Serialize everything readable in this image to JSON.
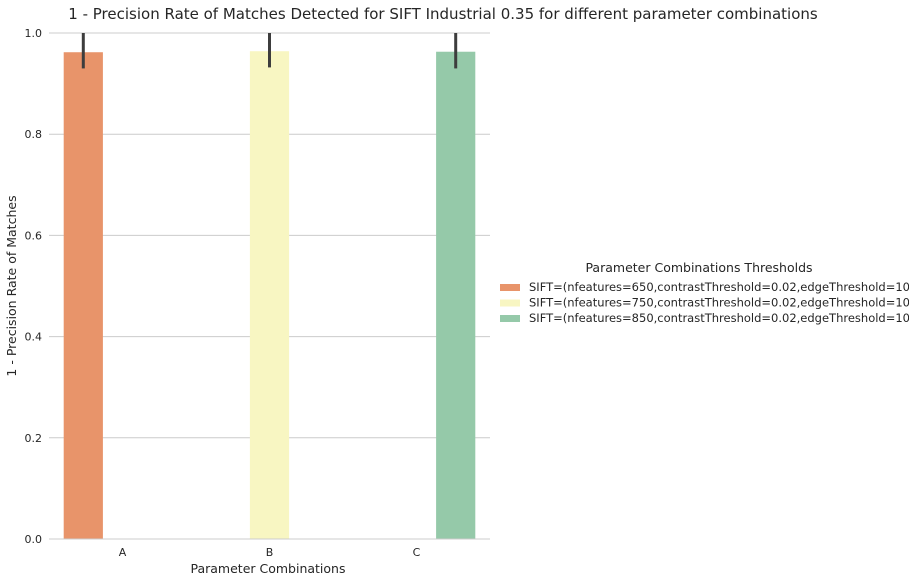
{
  "chart_data": {
    "type": "bar",
    "title": "1 - Precision Rate of Matches Detected for SIFT Industrial 0.35 for different parameter combinations",
    "xlabel": "Parameter Combinations",
    "ylabel": "1 - Precision Rate of Matches",
    "categories": [
      "A",
      "B",
      "C"
    ],
    "ylim": [
      0,
      1.0
    ],
    "yticks": [
      "0.0",
      "0.2",
      "0.4",
      "0.6",
      "0.8",
      "1.0"
    ],
    "grid": "horizontal",
    "legend_title": "Parameter Combinations Thresholds",
    "legend_position": "right",
    "series": [
      {
        "name": "SIFT=(nfeatures=650,contrastThreshold=0.02,edgeThreshold=10)",
        "color": "#e8946a",
        "values": [
          0.962,
          null,
          null
        ],
        "err_low": [
          0.93,
          null,
          null
        ],
        "err_high": [
          1.0,
          null,
          null
        ]
      },
      {
        "name": "SIFT=(nfeatures=750,contrastThreshold=0.02,edgeThreshold=10)",
        "color": "#f8f6c2",
        "values": [
          null,
          0.964,
          null
        ],
        "err_low": [
          null,
          0.932,
          null
        ],
        "err_high": [
          null,
          1.0,
          null
        ]
      },
      {
        "name": "SIFT=(nfeatures=850,contrastThreshold=0.02,edgeThreshold=10)",
        "color": "#95c9a9",
        "values": [
          null,
          null,
          0.963
        ],
        "err_low": [
          null,
          null,
          0.93
        ],
        "err_high": [
          null,
          null,
          1.0
        ]
      }
    ]
  }
}
